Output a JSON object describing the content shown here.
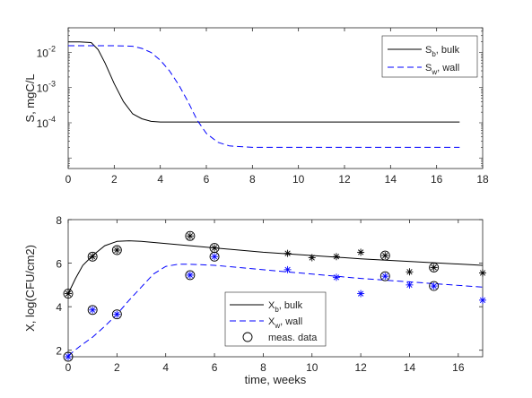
{
  "chart_data": [
    {
      "type": "line",
      "ylabel": "S, mgC/L",
      "xlim": [
        0,
        18
      ],
      "ylim_log10": [
        -5.3,
        -1.3
      ],
      "yscale": "log",
      "x_ticks": [
        "0",
        "2",
        "4",
        "6",
        "8",
        "10",
        "12",
        "14",
        "16",
        "18"
      ],
      "y_ticks": [
        {
          "base": "10",
          "exp": "-2",
          "log10": -2
        },
        {
          "base": "10",
          "exp": "-3",
          "log10": -3
        },
        {
          "base": "10",
          "exp": "-4",
          "log10": -4
        }
      ],
      "legend": {
        "placement": "top-right",
        "items": [
          {
            "name": "S",
            "sub": "b",
            "suffix": ", bulk",
            "style": "solid",
            "color": "#000000"
          },
          {
            "name": "S",
            "sub": "w",
            "suffix": ", wall",
            "style": "dashed",
            "color": "#0000ff"
          }
        ]
      },
      "series": [
        {
          "name": "S_b, bulk",
          "color": "#000000",
          "style": "solid",
          "x": [
            0,
            0.5,
            1,
            1.3,
            1.6,
            2,
            2.4,
            2.8,
            3.2,
            3.6,
            4,
            5,
            8,
            12,
            17
          ],
          "y": [
            0.02,
            0.02,
            0.019,
            0.012,
            0.005,
            0.0013,
            0.0004,
            0.00018,
            0.00013,
            0.00011,
            0.000105,
            0.000105,
            0.000105,
            0.000105,
            0.000105
          ]
        },
        {
          "name": "S_w, wall",
          "color": "#0000ff",
          "style": "dashed",
          "x": [
            0,
            1,
            2,
            2.8,
            3.2,
            3.6,
            4,
            4.4,
            4.8,
            5.2,
            5.6,
            6,
            6.5,
            7,
            8,
            10,
            12,
            17
          ],
          "y": [
            0.0155,
            0.0155,
            0.0155,
            0.015,
            0.013,
            0.01,
            0.006,
            0.003,
            0.0012,
            0.0004,
            0.00012,
            5e-05,
            2.8e-05,
            2.2e-05,
            2e-05,
            2e-05,
            2e-05,
            2e-05
          ]
        }
      ]
    },
    {
      "type": "line",
      "ylabel": "X, log(CFU/cm2)",
      "xlabel": "time, weeks",
      "xlim": [
        0,
        17
      ],
      "ylim": [
        1.7,
        8
      ],
      "x_ticks": [
        0,
        2,
        4,
        6,
        8,
        10,
        12,
        14,
        16
      ],
      "y_ticks": [
        2,
        4,
        6,
        8
      ],
      "legend": {
        "placement": "bottom-center",
        "items": [
          {
            "name": "X",
            "sub": "b",
            "suffix": ", bulk",
            "style": "solid",
            "color": "#000000"
          },
          {
            "name": "X",
            "sub": "w",
            "suffix": ", wall",
            "style": "dashed",
            "color": "#0000ff"
          },
          {
            "name": "meas. data",
            "sub": "",
            "suffix": "",
            "style": "circle",
            "color": "#000000"
          }
        ]
      },
      "series": [
        {
          "name": "X_b, bulk",
          "color": "#000000",
          "style": "solid",
          "x": [
            0,
            0.3,
            0.6,
            1,
            1.5,
            2,
            2.5,
            3,
            5,
            8,
            12,
            17
          ],
          "y": [
            4.6,
            5.3,
            5.9,
            6.35,
            6.8,
            7.0,
            7.03,
            7.0,
            6.8,
            6.5,
            6.2,
            5.9
          ]
        },
        {
          "name": "X_w, wall",
          "color": "#0000ff",
          "style": "dashed",
          "x": [
            0,
            0.5,
            1,
            1.5,
            2,
            2.5,
            3,
            3.5,
            4,
            4.5,
            5,
            6,
            8,
            12,
            17
          ],
          "y": [
            1.75,
            2.2,
            2.6,
            3.1,
            3.65,
            4.3,
            4.9,
            5.5,
            5.85,
            5.95,
            5.95,
            5.9,
            5.7,
            5.3,
            4.9
          ]
        },
        {
          "name": "meas. data bulk",
          "color": "#000000",
          "style": "star",
          "x": [
            0,
            1,
            2,
            5,
            6,
            9,
            10,
            11,
            12,
            13,
            14,
            15,
            17
          ],
          "y": [
            4.6,
            6.3,
            6.6,
            7.25,
            6.7,
            6.45,
            6.25,
            6.3,
            6.5,
            6.35,
            5.6,
            5.8,
            5.55
          ]
        },
        {
          "name": "meas. data wall",
          "color": "#0000ff",
          "style": "star",
          "x": [
            0,
            1,
            2,
            5,
            6,
            9,
            11,
            12,
            13,
            14,
            15,
            17
          ],
          "y": [
            1.7,
            3.85,
            3.65,
            5.45,
            6.3,
            5.7,
            5.35,
            4.6,
            5.4,
            5.0,
            4.95,
            4.3
          ]
        },
        {
          "name": "meas. data circled",
          "color": "#000000",
          "style": "circle",
          "x": [
            0,
            1,
            2,
            5,
            6,
            13,
            15,
            0,
            1,
            2,
            5,
            6,
            13,
            15
          ],
          "y": [
            4.6,
            6.3,
            6.6,
            7.25,
            6.7,
            6.35,
            5.8,
            1.7,
            3.85,
            3.65,
            5.45,
            6.3,
            5.4,
            4.95
          ]
        }
      ]
    }
  ]
}
